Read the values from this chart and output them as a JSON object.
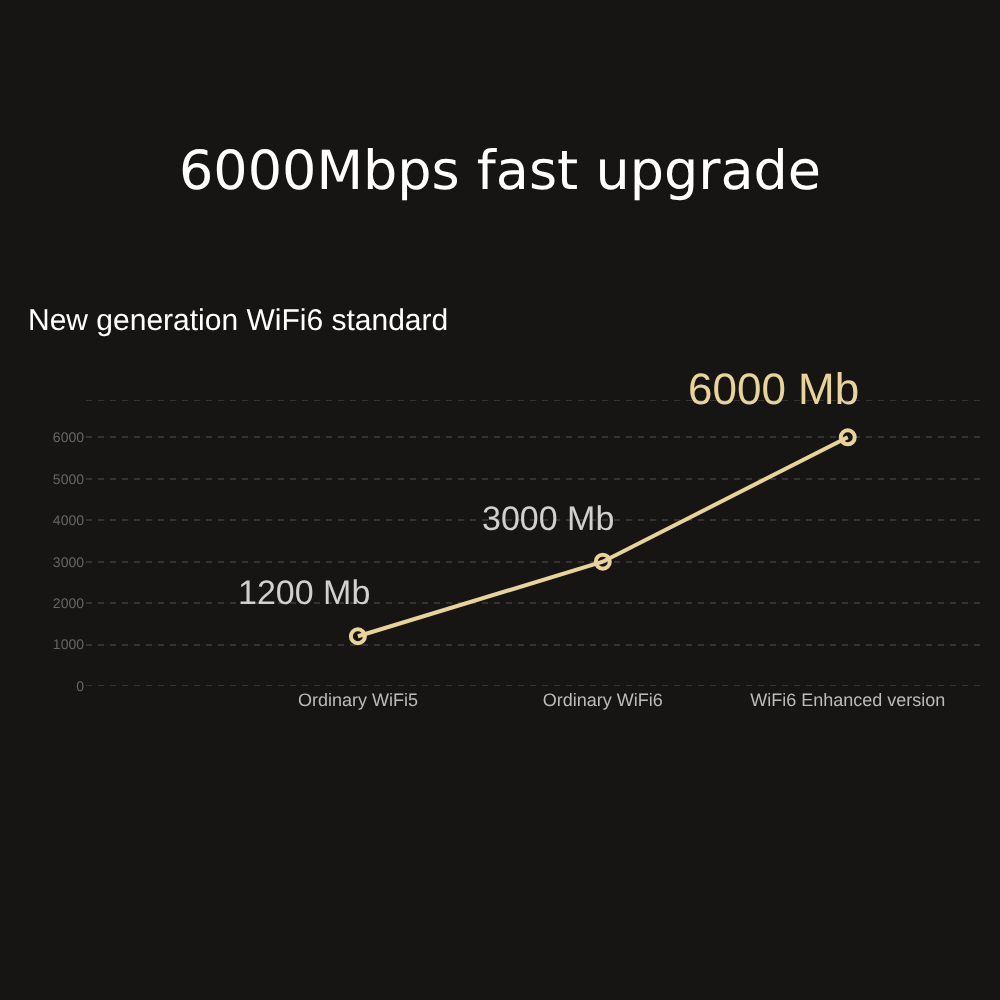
{
  "chart_data": {
    "type": "line",
    "title": "6000Mbps fast upgrade",
    "subtitle": "New generation WiFi6 standard",
    "categories": [
      null,
      "Ordinary WiFi5",
      "Ordinary WiFi6",
      "WiFi6 Enhanced version"
    ],
    "series": [
      {
        "color": "#e8d49a",
        "values": [
          null,
          1200,
          3000,
          6000
        ],
        "value_labels": [
          null,
          "1200 Mb",
          "3000 Mb",
          "6000 Mb"
        ]
      }
    ],
    "ylim": [
      0,
      6900
    ],
    "yticks": [
      0,
      1000,
      2000,
      3000,
      4000,
      5000,
      6000
    ],
    "grid": "y",
    "marker": "circle",
    "line_style": "solid"
  }
}
